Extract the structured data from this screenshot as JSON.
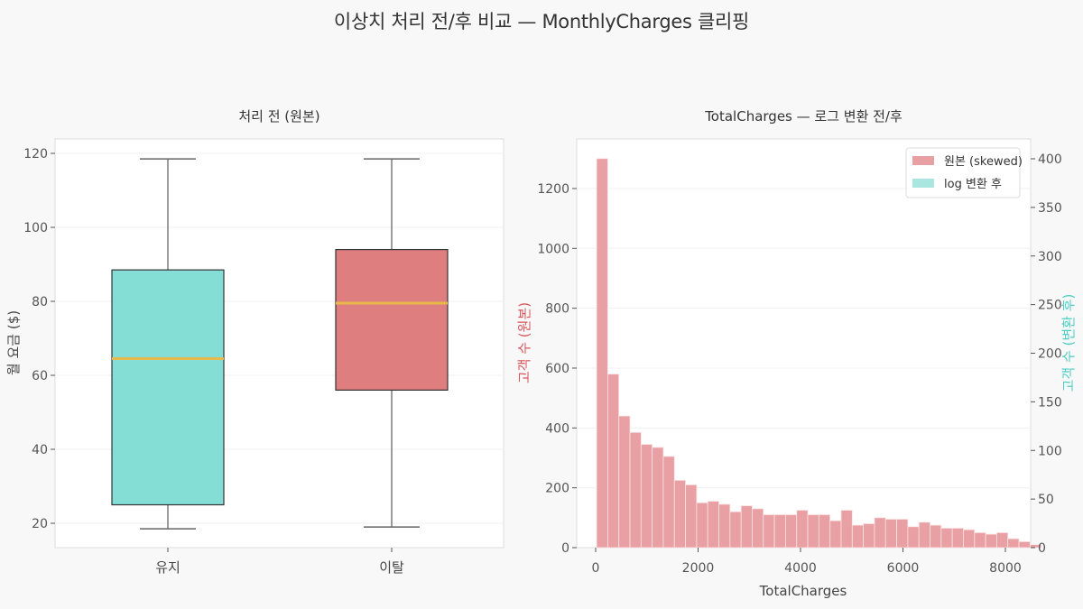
{
  "figure": {
    "suptitle": "이상치 처리 전/후 비교 — MonthlyCharges 클리핑",
    "background": "#f8f8f8"
  },
  "left_plot": {
    "title": "처리 전 (원본)",
    "ylabel": "월 요금 ($)"
  },
  "right_plot": {
    "title": "TotalCharges — 로그 변환 전/후",
    "xlabel": "TotalCharges",
    "ylabel_left": "고객 수 (원본)",
    "ylabel_right": "고객 수 (변환 후)",
    "legend": [
      {
        "label": "원본 (skewed)",
        "color": "#e8a0a4"
      },
      {
        "label": "log 변환 후",
        "color": "#a8e6df"
      }
    ]
  },
  "chart_data": [
    {
      "type": "box",
      "title": "처리 전 (원본)",
      "xlabel": "",
      "ylabel": "월 요금 ($)",
      "categories": [
        "유지",
        "이탈"
      ],
      "yticks": [
        20,
        40,
        60,
        80,
        100,
        120
      ],
      "ylim": [
        14,
        124
      ],
      "grid": true,
      "series": [
        {
          "name": "유지",
          "whisker_low": 18.5,
          "q1": 25.0,
          "median": 64.5,
          "q3": 88.5,
          "whisker_high": 118.5,
          "color": "#84ded6"
        },
        {
          "name": "이탈",
          "whisker_low": 19.0,
          "q1": 56.0,
          "median": 79.5,
          "q3": 94.0,
          "whisker_high": 118.5,
          "color": "#df7e7e"
        }
      ],
      "median_color": "#e8b94a"
    },
    {
      "type": "bar",
      "subtype": "histogram",
      "title": "TotalCharges — 로그 변환 전/후",
      "xlabel": "TotalCharges",
      "ylabel": "고객 수 (원본)",
      "ylabel_secondary": "고객 수 (변환 후)",
      "xticks": [
        0,
        2000,
        4000,
        6000,
        8000
      ],
      "xlim": [
        -400,
        9200
      ],
      "yticks": [
        0,
        200,
        400,
        600,
        800,
        1000,
        1200
      ],
      "ylim": [
        0,
        1365
      ],
      "yticks_secondary": [
        0,
        50,
        100,
        150,
        200,
        250,
        300,
        350,
        400
      ],
      "ylim_secondary": [
        0,
        430
      ],
      "grid": true,
      "legend_position": "upper right",
      "bin_start": 19,
      "bin_width": 217,
      "series": [
        {
          "name": "원본 (skewed)",
          "color": "#e8a0a4",
          "values": [
            1300,
            580,
            440,
            385,
            345,
            335,
            305,
            225,
            210,
            150,
            155,
            145,
            120,
            140,
            130,
            110,
            110,
            110,
            125,
            110,
            110,
            90,
            125,
            75,
            80,
            100,
            95,
            95,
            70,
            85,
            75,
            65,
            65,
            60,
            50,
            45,
            50,
            30,
            20,
            10
          ]
        },
        {
          "name": "log 변환 후",
          "color": "#a8e6df",
          "values": []
        }
      ]
    }
  ]
}
